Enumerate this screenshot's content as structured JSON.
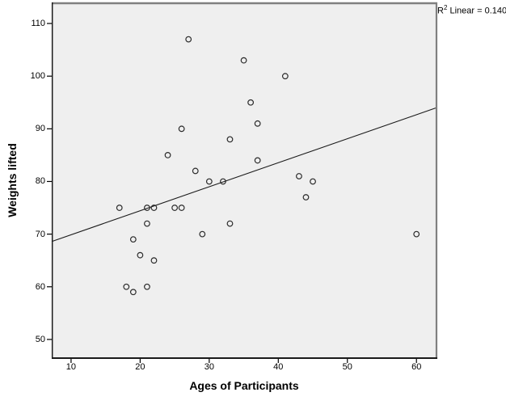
{
  "annotation": {
    "prefix": "R",
    "superscript": "2",
    "rest": " Linear = 0.140"
  },
  "chart_data": {
    "type": "scatter",
    "title": "",
    "xlabel": "Ages of Participants",
    "ylabel": "Weights lifted",
    "r2_label": "R² Linear = 0.140",
    "x_ticks": [
      10,
      20,
      30,
      40,
      50,
      60
    ],
    "y_ticks": [
      50,
      60,
      70,
      80,
      90,
      100,
      110
    ],
    "xlim": [
      7.2,
      62.9
    ],
    "ylim": [
      46.3,
      114.0
    ],
    "grid": false,
    "legend": "none",
    "marker": "open-circle",
    "points": [
      [
        17,
        75
      ],
      [
        18,
        60
      ],
      [
        19,
        59
      ],
      [
        19,
        69
      ],
      [
        20,
        66
      ],
      [
        21,
        60
      ],
      [
        21,
        72
      ],
      [
        21,
        75
      ],
      [
        22,
        65
      ],
      [
        22,
        75
      ],
      [
        24,
        85
      ],
      [
        25,
        75
      ],
      [
        26,
        75
      ],
      [
        26,
        90
      ],
      [
        27,
        107
      ],
      [
        28,
        82
      ],
      [
        29,
        70
      ],
      [
        30,
        80
      ],
      [
        32,
        80
      ],
      [
        33,
        72
      ],
      [
        33,
        88
      ],
      [
        35,
        103
      ],
      [
        36,
        95
      ],
      [
        37,
        84
      ],
      [
        37,
        91
      ],
      [
        41,
        100
      ],
      [
        43,
        81
      ],
      [
        44,
        77
      ],
      [
        45,
        80
      ],
      [
        60,
        70
      ]
    ],
    "trend_line": {
      "x1": 7.2,
      "y1": 68.6,
      "x2": 62.9,
      "y2": 94.0
    }
  },
  "colors": {
    "plot_background": "#EFEFEF",
    "outer_background": "#FFFFFF",
    "border_dark": "#1A1A1A",
    "border_gray": "#808080",
    "marker_stroke": "#2B2B2B",
    "trend_line": "#1A1A1A",
    "tick": "#000000",
    "text": "#000000"
  }
}
